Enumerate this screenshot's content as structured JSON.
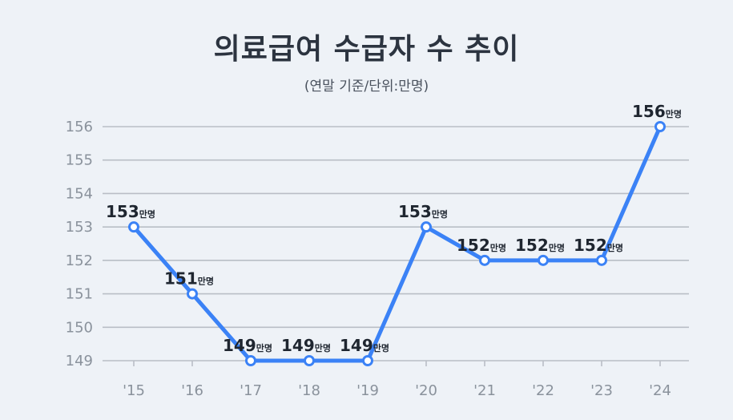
{
  "chart_data": {
    "type": "line",
    "title": "의료급여 수급자 수 추이",
    "subtitle": "(연말 기준/단위:만명)",
    "categories": [
      "'15",
      "'16",
      "'17",
      "'18",
      "'19",
      "'20",
      "'21",
      "'22",
      "'23",
      "'24"
    ],
    "values": [
      153,
      151,
      149,
      149,
      149,
      153,
      152,
      152,
      152,
      156
    ],
    "value_suffix": "만명",
    "y_ticks": [
      "149",
      "150",
      "151",
      "152",
      "153",
      "154",
      "155",
      "156"
    ],
    "ylim": [
      149,
      156
    ],
    "grid": true,
    "xlabel": "",
    "ylabel": ""
  },
  "colors": {
    "line": "#3b82f6",
    "background": "#eef2f7",
    "grid": "#b9bec6",
    "tick_text": "#8a929c",
    "label_text": "#1f2630"
  }
}
